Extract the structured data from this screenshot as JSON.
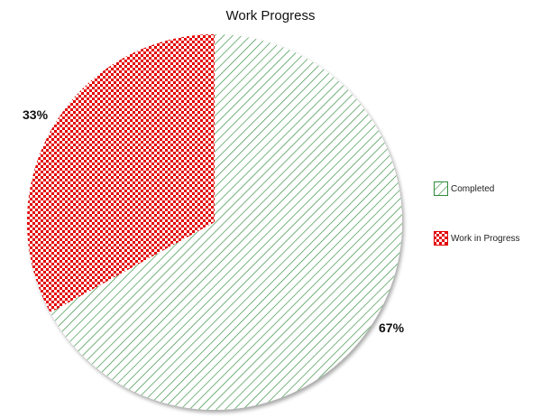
{
  "chart_data": {
    "type": "pie",
    "title": "Work Progress",
    "start_angle_deg": 0,
    "direction": "clockwise",
    "series": [
      {
        "name": "Completed",
        "value": 67,
        "label": "67%",
        "color": "#2e8b3a",
        "pattern": "diagonal-hatch"
      },
      {
        "name": "Work in Progress",
        "value": 33,
        "label": "33%",
        "color": "#e30000",
        "pattern": "checkerboard"
      }
    ],
    "legend": {
      "position": "right"
    }
  }
}
